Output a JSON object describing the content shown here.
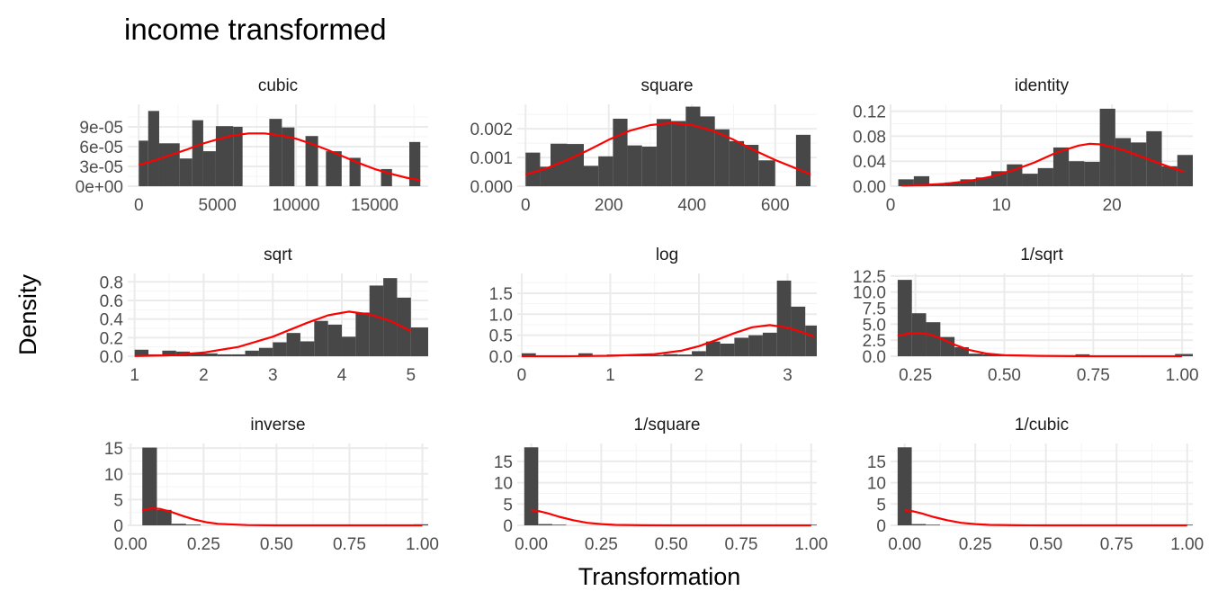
{
  "title": "income transformed",
  "xlabel": "Transformation",
  "ylabel": "Density",
  "chart_data": [
    {
      "type": "bar",
      "title": "cubic",
      "xlim": [
        -700,
        18400
      ],
      "ylim": [
        0,
        0.000124
      ],
      "xticks": [
        0,
        5000,
        10000,
        15000
      ],
      "xtick_labels": [
        "0",
        "5000",
        "10000",
        "15000"
      ],
      "yticks": [
        0,
        3e-05,
        6e-05,
        9e-05
      ],
      "ytick_labels": [
        "0e+00",
        "3e-05",
        "6e-05",
        "9e-05"
      ],
      "bins": [
        {
          "x0": 0,
          "x1": 600,
          "y": 6.9e-05
        },
        {
          "x0": 600,
          "x1": 1300,
          "y": 0.000114
        },
        {
          "x0": 1300,
          "x1": 2600,
          "y": 6.5e-05
        },
        {
          "x0": 2600,
          "x1": 3400,
          "y": 4.2e-05
        },
        {
          "x0": 3400,
          "x1": 4100,
          "y": 0.0001
        },
        {
          "x0": 4100,
          "x1": 4900,
          "y": 5.3e-05
        },
        {
          "x0": 4900,
          "x1": 6000,
          "y": 9.1e-05
        },
        {
          "x0": 6000,
          "x1": 6600,
          "y": 9e-05
        },
        {
          "x0": 8300,
          "x1": 9100,
          "y": 0.000102
        },
        {
          "x0": 9100,
          "x1": 9900,
          "y": 8.9e-05
        },
        {
          "x0": 10600,
          "x1": 11400,
          "y": 7.6e-05
        },
        {
          "x0": 11900,
          "x1": 12900,
          "y": 5.3e-05
        },
        {
          "x0": 13400,
          "x1": 14100,
          "y": 4.3e-05
        },
        {
          "x0": 15400,
          "x1": 16100,
          "y": 2.6e-05
        },
        {
          "x0": 17200,
          "x1": 17900,
          "y": 6.7e-05
        }
      ],
      "curve": {
        "x": [
          0,
          1000,
          2000,
          3000,
          4000,
          5000,
          6000,
          7000,
          8000,
          9000,
          10000,
          11000,
          12000,
          13000,
          14000,
          15000,
          16000,
          17000,
          17900
        ],
        "y": [
          3.2e-05,
          3.9e-05,
          4.7e-05,
          5.5e-05,
          6.4e-05,
          7.1e-05,
          7.7e-05,
          8e-05,
          8e-05,
          7.7e-05,
          7.2e-05,
          6.4e-05,
          5.5e-05,
          4.5e-05,
          3.5e-05,
          2.6e-05,
          1.9e-05,
          1.3e-05,
          9e-06
        ]
      }
    },
    {
      "type": "bar",
      "title": "square",
      "xlim": [
        -20,
        700
      ],
      "ylim": [
        0,
        0.00285
      ],
      "xticks": [
        0,
        200,
        400,
        600
      ],
      "xtick_labels": [
        "0",
        "200",
        "400",
        "600"
      ],
      "yticks": [
        0,
        0.001,
        0.002
      ],
      "ytick_labels": [
        "0.000",
        "0.001",
        "0.002"
      ],
      "bins": [
        {
          "x0": 0,
          "x1": 35,
          "y": 0.00117
        },
        {
          "x0": 35,
          "x1": 60,
          "y": 0.00068
        },
        {
          "x0": 60,
          "x1": 100,
          "y": 0.00148
        },
        {
          "x0": 100,
          "x1": 140,
          "y": 0.00147
        },
        {
          "x0": 140,
          "x1": 175,
          "y": 0.00071
        },
        {
          "x0": 175,
          "x1": 210,
          "y": 0.00104
        },
        {
          "x0": 210,
          "x1": 245,
          "y": 0.00235
        },
        {
          "x0": 245,
          "x1": 280,
          "y": 0.00142
        },
        {
          "x0": 280,
          "x1": 315,
          "y": 0.00138
        },
        {
          "x0": 315,
          "x1": 350,
          "y": 0.00234
        },
        {
          "x0": 350,
          "x1": 385,
          "y": 0.00227
        },
        {
          "x0": 385,
          "x1": 420,
          "y": 0.00277
        },
        {
          "x0": 420,
          "x1": 455,
          "y": 0.00243
        },
        {
          "x0": 455,
          "x1": 490,
          "y": 0.00198
        },
        {
          "x0": 490,
          "x1": 525,
          "y": 0.00157
        },
        {
          "x0": 525,
          "x1": 560,
          "y": 0.00144
        },
        {
          "x0": 560,
          "x1": 600,
          "y": 0.0009
        },
        {
          "x0": 650,
          "x1": 685,
          "y": 0.00179
        }
      ],
      "curve": {
        "x": [
          0,
          50,
          100,
          150,
          200,
          250,
          300,
          350,
          400,
          450,
          500,
          550,
          600,
          650,
          685
        ],
        "y": [
          0.0004,
          0.00062,
          0.00091,
          0.00125,
          0.00162,
          0.00193,
          0.00213,
          0.0022,
          0.00213,
          0.00193,
          0.00162,
          0.00125,
          0.00091,
          0.00062,
          0.00041
        ]
      }
    },
    {
      "type": "bar",
      "title": "identity",
      "xlim": [
        0,
        27.3
      ],
      "ylim": [
        0,
        0.131
      ],
      "xticks": [
        0,
        10,
        20
      ],
      "xtick_labels": [
        "0",
        "10",
        "20"
      ],
      "yticks": [
        0,
        0.04,
        0.08,
        0.12
      ],
      "ytick_labels": [
        "0.00",
        "0.04",
        "0.08",
        "0.12"
      ],
      "bins": [
        {
          "x0": 0.7,
          "x1": 2.1,
          "y": 0.011
        },
        {
          "x0": 2.1,
          "x1": 3.5,
          "y": 0.016
        },
        {
          "x0": 3.5,
          "x1": 4.9,
          "y": 0.003
        },
        {
          "x0": 4.9,
          "x1": 6.3,
          "y": 0.006
        },
        {
          "x0": 6.3,
          "x1": 7.7,
          "y": 0.011
        },
        {
          "x0": 7.7,
          "x1": 9.1,
          "y": 0.014
        },
        {
          "x0": 9.1,
          "x1": 10.5,
          "y": 0.024
        },
        {
          "x0": 10.5,
          "x1": 11.9,
          "y": 0.035
        },
        {
          "x0": 11.9,
          "x1": 13.3,
          "y": 0.02
        },
        {
          "x0": 13.3,
          "x1": 14.7,
          "y": 0.029
        },
        {
          "x0": 14.7,
          "x1": 16.1,
          "y": 0.062
        },
        {
          "x0": 16.1,
          "x1": 17.5,
          "y": 0.04
        },
        {
          "x0": 17.5,
          "x1": 18.9,
          "y": 0.039
        },
        {
          "x0": 18.9,
          "x1": 20.3,
          "y": 0.124
        },
        {
          "x0": 20.3,
          "x1": 21.7,
          "y": 0.077
        },
        {
          "x0": 21.7,
          "x1": 23.1,
          "y": 0.07
        },
        {
          "x0": 23.1,
          "x1": 24.5,
          "y": 0.088
        },
        {
          "x0": 24.5,
          "x1": 25.9,
          "y": 0.032
        },
        {
          "x0": 25.9,
          "x1": 27.3,
          "y": 0.05
        }
      ],
      "curve": {
        "x": [
          1,
          3,
          5,
          7,
          9,
          11,
          13,
          15,
          17,
          18,
          19,
          21,
          23,
          25,
          26.5
        ],
        "y": [
          0.001,
          0.002,
          0.004,
          0.008,
          0.015,
          0.025,
          0.038,
          0.054,
          0.065,
          0.068,
          0.067,
          0.058,
          0.045,
          0.032,
          0.023
        ]
      }
    },
    {
      "type": "bar",
      "title": "sqrt",
      "xlim": [
        0.9,
        5.25
      ],
      "ylim": [
        0,
        0.89
      ],
      "xticks": [
        1,
        2,
        3,
        4,
        5
      ],
      "xtick_labels": [
        "1",
        "2",
        "3",
        "4",
        "5"
      ],
      "yticks": [
        0,
        0.2,
        0.4,
        0.6,
        0.8
      ],
      "ytick_labels": [
        "0.0",
        "0.2",
        "0.4",
        "0.6",
        "0.8"
      ],
      "bins": [
        {
          "x0": 1.0,
          "x1": 1.2,
          "y": 0.07
        },
        {
          "x0": 1.2,
          "x1": 1.4,
          "y": 0.02
        },
        {
          "x0": 1.4,
          "x1": 1.6,
          "y": 0.06
        },
        {
          "x0": 1.6,
          "x1": 1.8,
          "y": 0.05
        },
        {
          "x0": 1.8,
          "x1": 2.0,
          "y": 0.03
        },
        {
          "x0": 2.0,
          "x1": 2.2,
          "y": 0.03
        },
        {
          "x0": 2.2,
          "x1": 2.4,
          "y": 0.02
        },
        {
          "x0": 2.4,
          "x1": 2.6,
          "y": 0.02
        },
        {
          "x0": 2.6,
          "x1": 2.8,
          "y": 0.06
        },
        {
          "x0": 2.8,
          "x1": 3.0,
          "y": 0.09
        },
        {
          "x0": 3.0,
          "x1": 3.2,
          "y": 0.15
        },
        {
          "x0": 3.2,
          "x1": 3.4,
          "y": 0.25
        },
        {
          "x0": 3.4,
          "x1": 3.6,
          "y": 0.16
        },
        {
          "x0": 3.6,
          "x1": 3.8,
          "y": 0.38
        },
        {
          "x0": 3.8,
          "x1": 4.0,
          "y": 0.34
        },
        {
          "x0": 4.0,
          "x1": 4.2,
          "y": 0.21
        },
        {
          "x0": 4.2,
          "x1": 4.4,
          "y": 0.47
        },
        {
          "x0": 4.4,
          "x1": 4.6,
          "y": 0.76
        },
        {
          "x0": 4.6,
          "x1": 4.8,
          "y": 0.84
        },
        {
          "x0": 4.8,
          "x1": 5.0,
          "y": 0.63
        },
        {
          "x0": 5.0,
          "x1": 5.25,
          "y": 0.31
        }
      ],
      "curve": {
        "x": [
          1.0,
          1.5,
          2.0,
          2.5,
          3.0,
          3.5,
          3.8,
          4.1,
          4.4,
          4.7,
          5.0
        ],
        "y": [
          0.002,
          0.01,
          0.04,
          0.1,
          0.21,
          0.36,
          0.44,
          0.48,
          0.45,
          0.38,
          0.27
        ]
      }
    },
    {
      "type": "bar",
      "title": "log",
      "xlim": [
        -0.05,
        3.33
      ],
      "ylim": [
        0,
        1.97
      ],
      "xticks": [
        0,
        1,
        2,
        3
      ],
      "xtick_labels": [
        "0",
        "1",
        "2",
        "3"
      ],
      "yticks": [
        0,
        0.5,
        1.0,
        1.5
      ],
      "ytick_labels": [
        "0.0",
        "0.5",
        "1.0",
        "1.5"
      ],
      "bins": [
        {
          "x0": 0.0,
          "x1": 0.16,
          "y": 0.07
        },
        {
          "x0": 0.16,
          "x1": 0.32,
          "y": 0.02
        },
        {
          "x0": 0.64,
          "x1": 0.8,
          "y": 0.07
        },
        {
          "x0": 0.8,
          "x1": 0.96,
          "y": 0.02
        },
        {
          "x0": 0.96,
          "x1": 1.12,
          "y": 0.04
        },
        {
          "x0": 1.12,
          "x1": 1.28,
          "y": 0.04
        },
        {
          "x0": 1.28,
          "x1": 1.44,
          "y": 0.02
        },
        {
          "x0": 1.44,
          "x1": 1.6,
          "y": 0.03
        },
        {
          "x0": 1.6,
          "x1": 1.76,
          "y": 0.05
        },
        {
          "x0": 1.76,
          "x1": 1.92,
          "y": 0.04
        },
        {
          "x0": 1.92,
          "x1": 2.08,
          "y": 0.12
        },
        {
          "x0": 2.08,
          "x1": 2.24,
          "y": 0.35
        },
        {
          "x0": 2.24,
          "x1": 2.4,
          "y": 0.3
        },
        {
          "x0": 2.4,
          "x1": 2.56,
          "y": 0.44
        },
        {
          "x0": 2.56,
          "x1": 2.72,
          "y": 0.5
        },
        {
          "x0": 2.72,
          "x1": 2.88,
          "y": 0.56
        },
        {
          "x0": 2.88,
          "x1": 3.04,
          "y": 1.8
        },
        {
          "x0": 3.04,
          "x1": 3.2,
          "y": 1.18
        },
        {
          "x0": 3.2,
          "x1": 3.33,
          "y": 0.73
        }
      ],
      "curve": {
        "x": [
          0.0,
          0.5,
          1.0,
          1.5,
          1.8,
          2.0,
          2.2,
          2.4,
          2.6,
          2.8,
          3.0,
          3.15,
          3.3
        ],
        "y": [
          0.0,
          0.0,
          0.01,
          0.05,
          0.13,
          0.24,
          0.39,
          0.55,
          0.69,
          0.74,
          0.68,
          0.58,
          0.47
        ]
      }
    },
    {
      "type": "bar",
      "title": "1/sqrt",
      "xlim": [
        0.18,
        1.03
      ],
      "ylim": [
        0,
        12.9
      ],
      "xticks": [
        0.25,
        0.5,
        0.75,
        1.0
      ],
      "xtick_labels": [
        "0.25",
        "0.50",
        "0.75",
        "1.00"
      ],
      "yticks": [
        0,
        2.5,
        5.0,
        7.5,
        10.0,
        12.5
      ],
      "ytick_labels": [
        "0.0",
        "2.5",
        "5.0",
        "7.5",
        "10.0",
        "12.5"
      ],
      "bins": [
        {
          "x0": 0.2,
          "x1": 0.24,
          "y": 11.9
        },
        {
          "x0": 0.24,
          "x1": 0.28,
          "y": 6.7
        },
        {
          "x0": 0.28,
          "x1": 0.32,
          "y": 5.3
        },
        {
          "x0": 0.32,
          "x1": 0.36,
          "y": 3.0
        },
        {
          "x0": 0.36,
          "x1": 0.4,
          "y": 1.4
        },
        {
          "x0": 0.4,
          "x1": 0.44,
          "y": 0.4
        },
        {
          "x0": 0.44,
          "x1": 0.48,
          "y": 0.3
        },
        {
          "x0": 0.48,
          "x1": 0.52,
          "y": 0.2
        },
        {
          "x0": 0.7,
          "x1": 0.74,
          "y": 0.3
        },
        {
          "x0": 0.98,
          "x1": 1.03,
          "y": 0.35
        }
      ],
      "curve": {
        "x": [
          0.2,
          0.23,
          0.26,
          0.29,
          0.32,
          0.36,
          0.4,
          0.45,
          0.5,
          0.6,
          0.75,
          1.0
        ],
        "y": [
          3.2,
          3.5,
          3.6,
          3.4,
          2.8,
          1.8,
          1.0,
          0.4,
          0.15,
          0.05,
          0.0,
          0.0
        ]
      }
    },
    {
      "type": "bar",
      "title": "inverse",
      "xlim": [
        -0.01,
        1.02
      ],
      "ylim": [
        0,
        15.9
      ],
      "xticks": [
        0,
        0.25,
        0.5,
        0.75,
        1.0
      ],
      "xtick_labels": [
        "0.00",
        "0.25",
        "0.50",
        "0.75",
        "1.00"
      ],
      "yticks": [
        0,
        5,
        10,
        15
      ],
      "ytick_labels": [
        "0",
        "5",
        "10",
        "15"
      ],
      "bins": [
        {
          "x0": 0.04,
          "x1": 0.09,
          "y": 15.1
        },
        {
          "x0": 0.09,
          "x1": 0.14,
          "y": 3.0
        },
        {
          "x0": 0.14,
          "x1": 0.19,
          "y": 0.3
        },
        {
          "x0": 0.19,
          "x1": 0.24,
          "y": 0.15
        },
        {
          "x0": 0.97,
          "x1": 1.02,
          "y": 0.2
        }
      ],
      "curve": {
        "x": [
          0.04,
          0.07,
          0.1,
          0.14,
          0.18,
          0.22,
          0.26,
          0.3,
          0.4,
          0.5,
          0.7,
          1.0
        ],
        "y": [
          2.9,
          3.3,
          3.2,
          2.6,
          1.8,
          1.1,
          0.6,
          0.3,
          0.05,
          0.0,
          0.0,
          0.0
        ]
      }
    },
    {
      "type": "bar",
      "title": "1/square",
      "xlim": [
        -0.05,
        1.02
      ],
      "ylim": [
        0,
        19.2
      ],
      "xticks": [
        0,
        0.25,
        0.5,
        0.75,
        1.0
      ],
      "xtick_labels": [
        "0.00",
        "0.25",
        "0.50",
        "0.75",
        "1.00"
      ],
      "yticks": [
        0,
        5,
        10,
        15
      ],
      "ytick_labels": [
        "0",
        "5",
        "10",
        "15"
      ],
      "bins": [
        {
          "x0": -0.025,
          "x1": 0.025,
          "y": 18.3
        },
        {
          "x0": 0.025,
          "x1": 0.075,
          "y": 0.3
        },
        {
          "x0": 0.075,
          "x1": 0.125,
          "y": 0.15
        },
        {
          "x0": 0.975,
          "x1": 1.02,
          "y": 0.15
        }
      ],
      "curve": {
        "x": [
          0.0,
          0.03,
          0.06,
          0.1,
          0.15,
          0.2,
          0.25,
          0.3,
          0.4,
          0.5,
          0.7,
          1.0
        ],
        "y": [
          3.5,
          3.3,
          2.8,
          2.0,
          1.2,
          0.6,
          0.3,
          0.1,
          0.02,
          0.0,
          0.0,
          0.0
        ]
      }
    },
    {
      "type": "bar",
      "title": "1/cubic",
      "xlim": [
        -0.05,
        1.02
      ],
      "ylim": [
        0,
        19.2
      ],
      "xticks": [
        0,
        0.25,
        0.5,
        0.75,
        1.0
      ],
      "xtick_labels": [
        "0.00",
        "0.25",
        "0.50",
        "0.75",
        "1.00"
      ],
      "yticks": [
        0,
        5,
        10,
        15
      ],
      "ytick_labels": [
        "0",
        "5",
        "10",
        "15"
      ],
      "bins": [
        {
          "x0": -0.025,
          "x1": 0.025,
          "y": 18.3
        },
        {
          "x0": 0.025,
          "x1": 0.075,
          "y": 0.3
        },
        {
          "x0": 0.075,
          "x1": 0.125,
          "y": 0.15
        },
        {
          "x0": 0.975,
          "x1": 1.02,
          "y": 0.15
        }
      ],
      "curve": {
        "x": [
          0.0,
          0.03,
          0.06,
          0.1,
          0.15,
          0.2,
          0.25,
          0.3,
          0.4,
          0.5,
          0.7,
          1.0
        ],
        "y": [
          3.5,
          3.3,
          2.8,
          2.0,
          1.2,
          0.6,
          0.3,
          0.1,
          0.02,
          0.0,
          0.0,
          0.0
        ]
      }
    }
  ]
}
